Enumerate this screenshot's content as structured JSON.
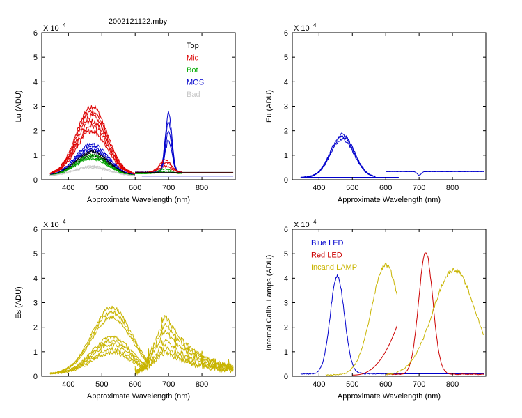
{
  "title": "2002121122.mby",
  "colors": {
    "top": "#000000",
    "mid": "#dd0000",
    "bot": "#00aa00",
    "mos": "#0000cc",
    "bad": "#c8c8c8",
    "es": "#c8b400",
    "blue_led": "#0000cc",
    "red_led": "#cc0000",
    "incand": "#c8b400"
  },
  "chart_data": [
    {
      "id": "lu",
      "type": "line",
      "title": "2002121122.mby",
      "xlabel": "Approximate Wavelength (nm)",
      "ylabel": "Lu (ADU)",
      "exponent_label": "X 10",
      "exponent_power": "4",
      "xlim": [
        320,
        900
      ],
      "ylim": [
        0,
        6
      ],
      "xticks": [
        "400",
        "500",
        "600",
        "700",
        "800"
      ],
      "yticks": [
        "0",
        "1",
        "2",
        "3",
        "4",
        "5",
        "6"
      ],
      "legend": [
        {
          "label": "Top",
          "color_key": "top"
        },
        {
          "label": "Mid",
          "color_key": "mid"
        },
        {
          "label": "Bot",
          "color_key": "bot"
        },
        {
          "label": "MOS",
          "color_key": "mos"
        },
        {
          "label": "Bad",
          "color_key": "bad"
        }
      ],
      "series": [
        {
          "name": "Mid",
          "color_key": "mid",
          "shape": "hump",
          "x1": 345,
          "x2": 600,
          "peak": 470,
          "width": 65,
          "base": 0.2,
          "amps": [
            3.0,
            2.8,
            2.6,
            2.4,
            2.2,
            2.0
          ],
          "noise": 0.08
        },
        {
          "name": "MOS",
          "color_key": "mos",
          "shape": "hump",
          "x1": 345,
          "x2": 600,
          "peak": 470,
          "width": 70,
          "base": 0.15,
          "amps": [
            1.45,
            1.35,
            1.25,
            1.15
          ],
          "noise": 0.05
        },
        {
          "name": "Top",
          "color_key": "top",
          "shape": "hump",
          "x1": 345,
          "x2": 600,
          "peak": 470,
          "width": 70,
          "base": 0.15,
          "amps": [
            1.15,
            1.05,
            0.95
          ],
          "noise": 0.04
        },
        {
          "name": "Bot",
          "color_key": "bot",
          "shape": "hump",
          "x1": 345,
          "x2": 600,
          "peak": 470,
          "width": 70,
          "base": 0.15,
          "amps": [
            1.0,
            0.9,
            0.85
          ],
          "noise": 0.04
        },
        {
          "name": "Bad",
          "color_key": "bad",
          "shape": "hump",
          "x1": 345,
          "x2": 600,
          "peak": 470,
          "width": 75,
          "base": 0.15,
          "amps": [
            0.55,
            0.5
          ],
          "noise": 0.03
        },
        {
          "name": "MOS",
          "color_key": "mos",
          "shape": "hump",
          "x1": 600,
          "x2": 740,
          "peak": 700,
          "width": 14,
          "base": 0.3,
          "amps": [
            2.7,
            2.3,
            2.0,
            1.6
          ],
          "noise": 0.06
        },
        {
          "name": "Mid",
          "color_key": "mid",
          "shape": "hump",
          "x1": 600,
          "x2": 740,
          "peak": 690,
          "width": 25,
          "base": 0.3,
          "amps": [
            0.8,
            0.7,
            0.55
          ],
          "noise": 0.03
        },
        {
          "name": "Bot",
          "color_key": "bot",
          "shape": "hump",
          "x1": 600,
          "x2": 740,
          "peak": 690,
          "width": 25,
          "base": 0.25,
          "amps": [
            0.45,
            0.35
          ],
          "noise": 0.02
        },
        {
          "name": "Top",
          "color_key": "top",
          "shape": "flat",
          "x1": 600,
          "x2": 895,
          "level": 0.3
        },
        {
          "name": "MOS",
          "color_key": "mos",
          "shape": "flat",
          "x1": 620,
          "x2": 895,
          "level": 0.15
        },
        {
          "name": "Mid",
          "color_key": "mid",
          "shape": "flat",
          "x1": 720,
          "x2": 895,
          "level": 0.28
        }
      ]
    },
    {
      "id": "eu",
      "type": "line",
      "xlabel": "Approximate Wavelength (nm)",
      "ylabel": "Eu  (ADU)",
      "exponent_label": "X 10",
      "exponent_power": "4",
      "xlim": [
        320,
        900
      ],
      "ylim": [
        0,
        6
      ],
      "xticks": [
        "400",
        "500",
        "600",
        "700",
        "800"
      ],
      "yticks": [
        "0",
        "1",
        "2",
        "3",
        "4",
        "5",
        "6"
      ],
      "legend": [],
      "series": [
        {
          "name": "Eu",
          "color_key": "mos",
          "shape": "hump",
          "x1": 345,
          "x2": 570,
          "peak": 470,
          "width": 50,
          "base": 0.1,
          "amps": [
            1.85,
            1.75,
            1.65
          ],
          "noise": 0.05
        },
        {
          "name": "Eu",
          "color_key": "mos",
          "shape": "flat",
          "x1": 345,
          "x2": 640,
          "level": 0.1
        },
        {
          "name": "Eu",
          "color_key": "mos",
          "shape": "hump",
          "x1": 600,
          "x2": 895,
          "peak": 700,
          "width": 8,
          "base": 0.33,
          "amps": [
            0.18
          ],
          "noise": 0.01
        }
      ]
    },
    {
      "id": "es",
      "type": "line",
      "xlabel": "Approximate Wavelength (nm)",
      "ylabel": "Es  (ADU)",
      "exponent_label": "X 10",
      "exponent_power": "4",
      "xlim": [
        320,
        900
      ],
      "ylim": [
        0,
        6
      ],
      "xticks": [
        "400",
        "500",
        "600",
        "700",
        "800"
      ],
      "yticks": [
        "0",
        "1",
        "2",
        "3",
        "4",
        "5",
        "6"
      ],
      "legend": [],
      "series": [
        {
          "name": "Es",
          "color_key": "es",
          "shape": "hump",
          "x1": 345,
          "x2": 640,
          "peak": 530,
          "width": 85,
          "base": 0.1,
          "amps": [
            2.8,
            2.6,
            2.4,
            1.6,
            1.45,
            1.3,
            1.1,
            0.95
          ],
          "noise": 0.06
        },
        {
          "name": "Es",
          "color_key": "es",
          "shape": "decay",
          "x1": 600,
          "x2": 895,
          "peak": 690,
          "floor": 0.15,
          "amps": [
            2.5,
            2.2,
            1.9,
            1.5,
            1.2,
            1.0
          ],
          "noise": 0.1
        }
      ]
    },
    {
      "id": "calib",
      "type": "line",
      "xlabel": "Approximate Wavelength (nm)",
      "ylabel": "Internal Calib. Lamps (ADU)",
      "exponent_label": "X 10",
      "exponent_power": "4",
      "xlim": [
        320,
        900
      ],
      "ylim": [
        0,
        6
      ],
      "xticks": [
        "400",
        "500",
        "600",
        "700",
        "800"
      ],
      "yticks": [
        "0",
        "1",
        "2",
        "3",
        "4",
        "5",
        "6"
      ],
      "legend": [
        {
          "label": "Blue LED",
          "color_key": "blue_led"
        },
        {
          "label": "Red LED",
          "color_key": "red_led"
        },
        {
          "label": "Incand LAMP",
          "color_key": "incand"
        }
      ],
      "series": [
        {
          "name": "Blue LED",
          "color_key": "blue_led",
          "shape": "hump",
          "x1": 345,
          "x2": 640,
          "peak": 455,
          "width": 30,
          "base": 0.1,
          "amps": [
            4.1
          ],
          "noise": 0.06
        },
        {
          "name": "Blue LED",
          "color_key": "blue_led",
          "shape": "flat",
          "x1": 600,
          "x2": 895,
          "level": 0.1
        },
        {
          "name": "Red LED",
          "color_key": "red_led",
          "shape": "ramp",
          "x1": 500,
          "x2": 635,
          "start": 0.05,
          "end": 2.1,
          "power": 2.5
        },
        {
          "name": "Red LED",
          "color_key": "red_led",
          "shape": "hump",
          "x1": 600,
          "x2": 895,
          "peak": 720,
          "width": 30,
          "base": 0.08,
          "amps": [
            5.05
          ],
          "noise": 0.04
        },
        {
          "name": "Incand LAMP",
          "color_key": "incand",
          "shape": "hump",
          "x1": 420,
          "x2": 635,
          "peak": 600,
          "width": 60,
          "base": 0.05,
          "amps": [
            4.55
          ],
          "noise": 0.06
        },
        {
          "name": "Incand LAMP",
          "color_key": "incand",
          "shape": "hump",
          "x1": 600,
          "x2": 895,
          "peak": 805,
          "width": 90,
          "base": 0.05,
          "amps": [
            4.35
          ],
          "noise": 0.06
        }
      ]
    }
  ]
}
